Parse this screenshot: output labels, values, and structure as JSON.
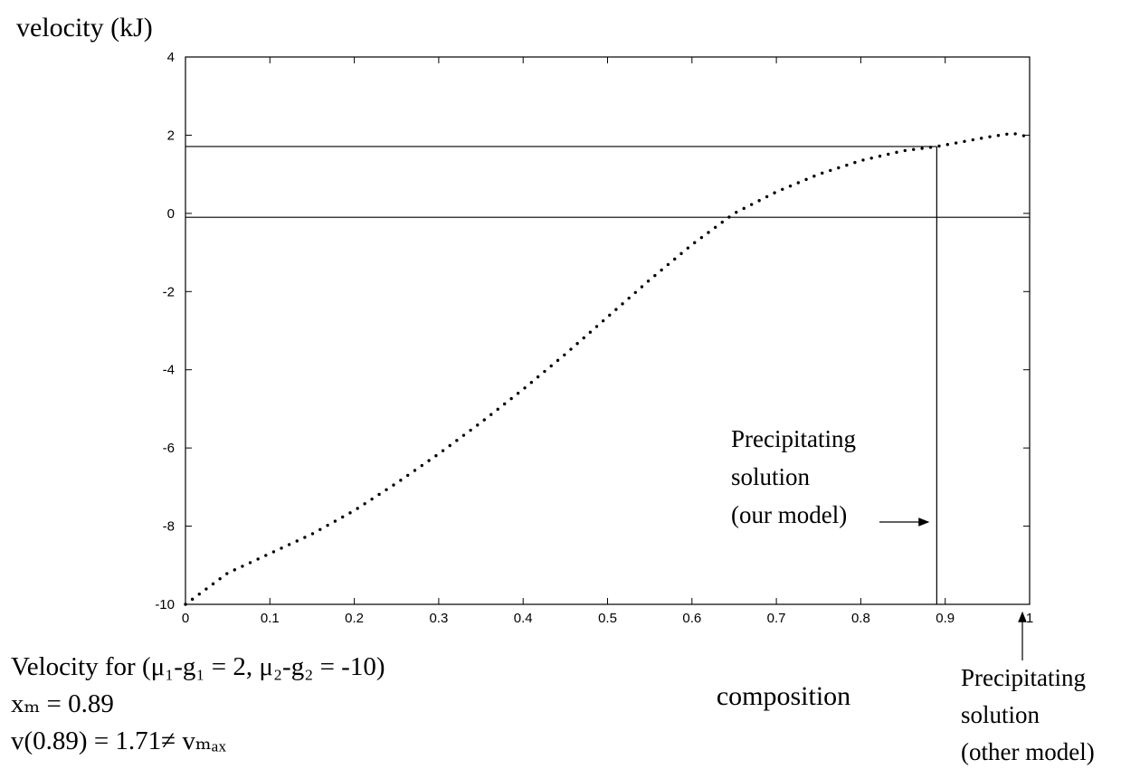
{
  "chart_data": {
    "type": "scatter",
    "ylabel": "velocity (kJ)",
    "xlabel": "composition",
    "xlim": [
      0,
      1
    ],
    "ylim": [
      -10,
      4
    ],
    "xticks": [
      "0",
      "0.1",
      "0.2",
      "0.3",
      "0.4",
      "0.5",
      "0.6",
      "0.7",
      "0.8",
      "0.9",
      "1"
    ],
    "yticks": [
      "4",
      "2",
      "0",
      "-2",
      "-4",
      "-6",
      "-8",
      "-10"
    ],
    "grid": false,
    "series": [
      {
        "style": "dotted",
        "x": [
          0.0,
          0.05,
          0.1,
          0.15,
          0.2,
          0.25,
          0.3,
          0.35,
          0.4,
          0.45,
          0.5,
          0.55,
          0.6,
          0.65,
          0.7,
          0.75,
          0.8,
          0.85,
          0.89,
          0.95,
          0.98,
          1.0
        ],
        "y": [
          -10.0,
          -9.2,
          -8.7,
          -8.2,
          -7.6,
          -6.9,
          -6.15,
          -5.35,
          -4.5,
          -3.6,
          -2.65,
          -1.7,
          -0.8,
          0.0,
          0.55,
          1.0,
          1.35,
          1.6,
          1.71,
          1.95,
          2.05,
          1.95
        ]
      }
    ],
    "reference_lines": {
      "horizontal": [
        1.71,
        -0.1
      ],
      "vertical": [
        0.89
      ]
    },
    "annotations": {
      "our_model": [
        "Precipitating",
        "solution",
        "(our model)"
      ],
      "other_model": [
        "Precipitating",
        "solution",
        "(other model)"
      ]
    },
    "caption": {
      "line1": "Velocity for (μ₁-g₁ = 2, μ₂-g₂ = -10)",
      "line2": "xₘ = 0.89",
      "line3": "v(0.89) = 1.71≠ vₘₐₓ"
    }
  }
}
